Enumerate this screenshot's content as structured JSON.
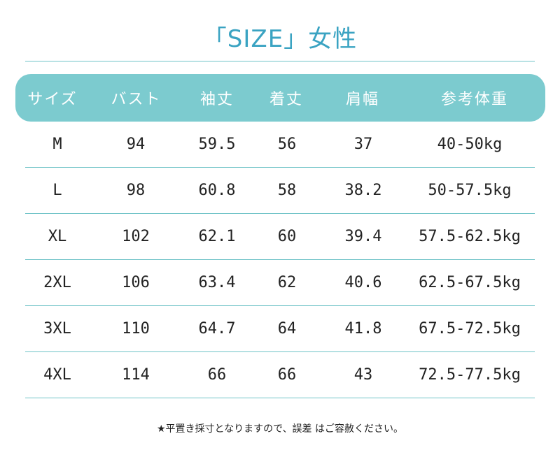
{
  "title": "「SIZE」女性",
  "colors": {
    "accent": "#7ccbcf",
    "text": "#222222",
    "title": "#3aa3c2",
    "header_text": "#ffffff"
  },
  "table": {
    "headers": [
      "サイズ",
      "バスト",
      "袖丈",
      "着丈",
      "肩幅",
      "参考体重"
    ],
    "rows": [
      [
        "M",
        "94",
        "59.5",
        "56",
        "37",
        "40-50kg"
      ],
      [
        "L",
        "98",
        "60.8",
        "58",
        "38.2",
        "50-57.5kg"
      ],
      [
        "XL",
        "102",
        "62.1",
        "60",
        "39.4",
        "57.5-62.5kg"
      ],
      [
        "2XL",
        "106",
        "63.4",
        "62",
        "40.6",
        "62.5-67.5kg"
      ],
      [
        "3XL",
        "110",
        "64.7",
        "64",
        "41.8",
        "67.5-72.5kg"
      ],
      [
        "4XL",
        "114",
        "66",
        "66",
        "43",
        "72.5-77.5kg"
      ]
    ]
  },
  "note": "★平置き採寸となりますので、誤差 はご容赦ください。"
}
